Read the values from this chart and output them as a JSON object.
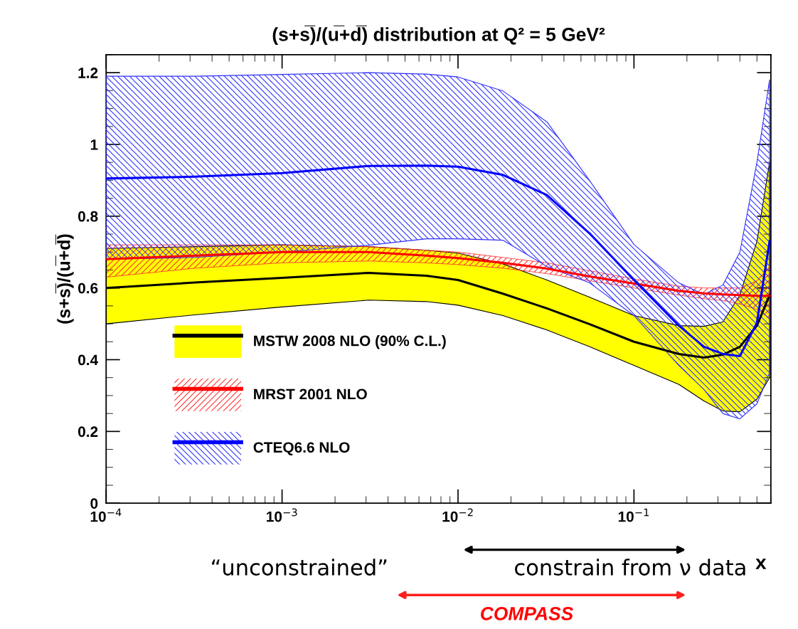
{
  "chart_data": {
    "type": "line",
    "title": "(s+s̅)/(u̅+d̅) distribution at Q² = 5 GeV²",
    "xlabel": "x",
    "ylabel": "(s+s̅)/(u̅+d̅)",
    "x": [
      0.0001,
      0.00032,
      0.001,
      0.0031,
      0.0066,
      0.01,
      0.018,
      0.032,
      0.056,
      0.1,
      0.18,
      0.25,
      0.32,
      0.4,
      0.5,
      0.59
    ],
    "series": [
      {
        "name": "MSTW 2008 NLO (90% C.L.)",
        "color": "#000000",
        "values": [
          0.6,
          0.615,
          0.628,
          0.642,
          0.634,
          0.622,
          0.584,
          0.543,
          0.499,
          0.45,
          0.416,
          0.406,
          0.414,
          0.436,
          0.495,
          0.58
        ],
        "upper": [
          0.71,
          0.715,
          0.72,
          0.715,
          0.705,
          0.697,
          0.667,
          0.622,
          0.574,
          0.523,
          0.495,
          0.493,
          0.505,
          0.58,
          0.73,
          0.95
        ],
        "lower": [
          0.5,
          0.525,
          0.547,
          0.566,
          0.562,
          0.552,
          0.523,
          0.483,
          0.436,
          0.384,
          0.331,
          0.285,
          0.257,
          0.255,
          0.29,
          0.35
        ]
      },
      {
        "name": "MRST 2001 NLO",
        "color": "#ff0000",
        "values": [
          0.68,
          0.69,
          0.7,
          0.7,
          0.69,
          0.683,
          0.67,
          0.654,
          0.632,
          0.612,
          0.592,
          0.585,
          0.582,
          0.58,
          0.578,
          0.578
        ],
        "upper": [
          0.72,
          0.72,
          0.72,
          0.715,
          0.705,
          0.7,
          0.685,
          0.67,
          0.648,
          0.625,
          0.605,
          0.6,
          0.6,
          0.6,
          0.62,
          0.66
        ],
        "lower": [
          0.63,
          0.655,
          0.67,
          0.675,
          0.67,
          0.665,
          0.655,
          0.64,
          0.62,
          0.6,
          0.58,
          0.57,
          0.565,
          0.555,
          0.54,
          0.515
        ]
      },
      {
        "name": "CTEQ6.6 NLO",
        "color": "#0000ff",
        "values": [
          0.905,
          0.91,
          0.92,
          0.94,
          0.941,
          0.938,
          0.915,
          0.859,
          0.752,
          0.622,
          0.495,
          0.436,
          0.416,
          0.41,
          0.503,
          0.73
        ],
        "upper": [
          1.19,
          1.19,
          1.195,
          1.2,
          1.196,
          1.188,
          1.149,
          1.063,
          0.899,
          0.721,
          0.614,
          0.582,
          0.608,
          0.7,
          0.95,
          1.18
        ],
        "lower": [
          0.68,
          0.685,
          0.7,
          0.719,
          0.737,
          0.737,
          0.733,
          0.66,
          0.614,
          0.523,
          0.384,
          0.317,
          0.25,
          0.235,
          0.277,
          0.364
        ]
      }
    ],
    "log": "x",
    "xlim": [
      0.0001,
      0.6
    ],
    "xticks": [
      {
        "value": 0.0001,
        "label": "10$^{−4}$"
      },
      {
        "value": 0.001,
        "label": "10$^{−3}$"
      },
      {
        "value": 0.01,
        "label": "10$^{−2}$"
      },
      {
        "value": 0.1,
        "label": "10$^{−1}$"
      }
    ],
    "ylim": [
      0,
      1.25
    ],
    "yticks": [
      0,
      0.2,
      0.4,
      0.6,
      0.8,
      1,
      1.2
    ],
    "legend": "lower left",
    "grid": false,
    "annotations": [
      "“unconstrained”",
      "constrain from ν data",
      "COMPASS"
    ]
  }
}
